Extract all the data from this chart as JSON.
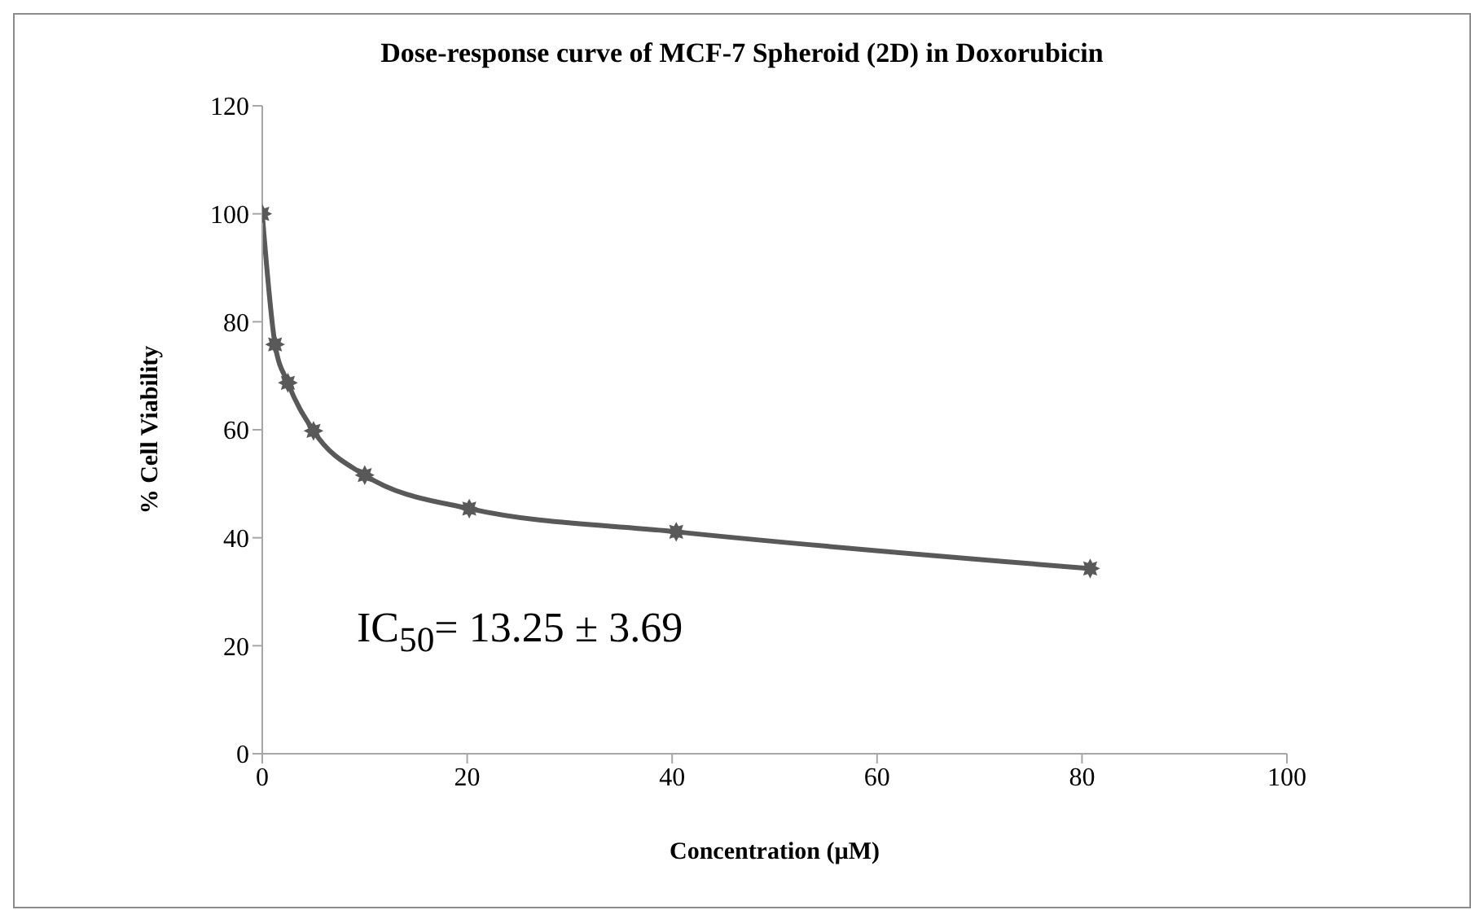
{
  "chart_data": {
    "type": "line",
    "title": "Dose-response curve of MCF-7 Spheroid (2D) in Doxorubicin",
    "xlabel": "Concentration (µM)",
    "ylabel": "% Cell Viability",
    "x": [
      0,
      1.25,
      2.5,
      5,
      10,
      20.2,
      40.4,
      80.8
    ],
    "series": [
      {
        "color": "#595959",
        "values": [
          100,
          75.8,
          68.7,
          59.8,
          51.6,
          45.4,
          41.1,
          34.3
        ]
      }
    ],
    "xlim": [
      0,
      100
    ],
    "xticks": [
      0,
      20,
      40,
      60,
      80,
      100
    ],
    "ylim": [
      0,
      120
    ],
    "yticks": [
      0,
      20,
      40,
      60,
      80,
      100,
      120
    ],
    "grid": false,
    "marker": "star",
    "line_style": "solid",
    "annotations": [
      {
        "text": "IC$_{50}$= 13.25 ± 3.69"
      }
    ]
  }
}
